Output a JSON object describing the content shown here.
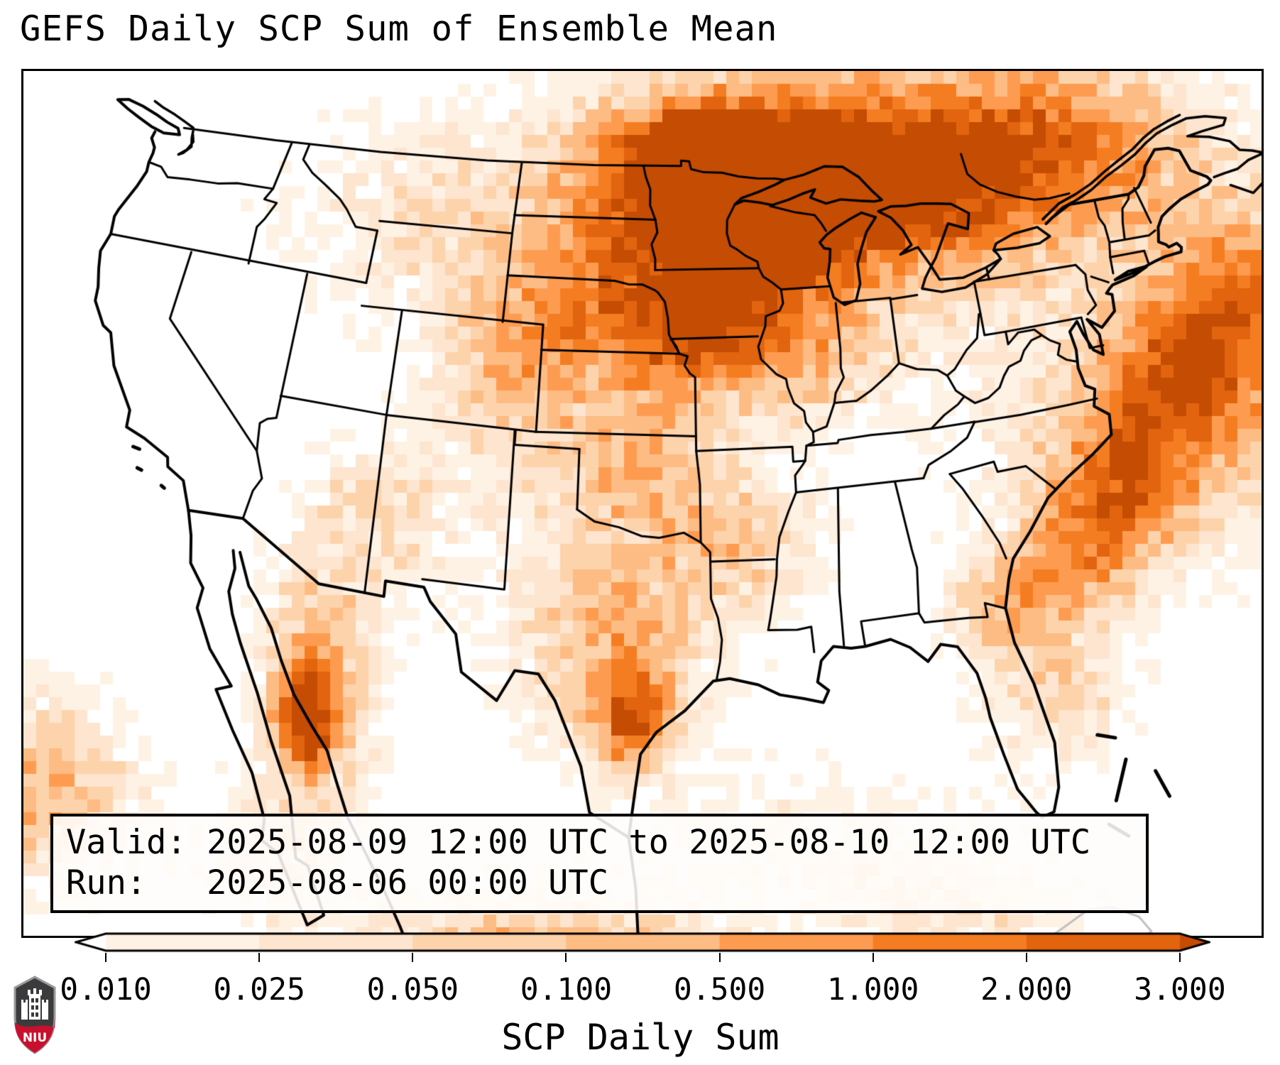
{
  "title": "GEFS Daily SCP Sum of Ensemble Mean",
  "info_box": {
    "valid_line": "Valid: 2025-08-09 12:00 UTC to 2025-08-10 12:00 UTC",
    "run_line": "Run:   2025-08-06 00:00 UTC"
  },
  "colorbar": {
    "label": "SCP Daily Sum",
    "tick_labels": [
      "0.010",
      "0.025",
      "0.050",
      "0.100",
      "0.500",
      "1.000",
      "2.000",
      "3.000"
    ],
    "colors": [
      "#ffffff",
      "#fef2e4",
      "#fde5cf",
      "#fdd3ac",
      "#fdbc84",
      "#fd9c51",
      "#f57d21",
      "#e2640e",
      "#c54c03"
    ],
    "extend": "both"
  },
  "logo": {
    "text": "NIU",
    "shield_dark": "#3b3b3d",
    "shield_red": "#c8102e",
    "outline": "#9a9a9a"
  },
  "map": {
    "land_border_color": "#000000",
    "foreign_water_outline_color": "#c0c0c0",
    "background": "#ffffff"
  },
  "chart_data": {
    "type": "heatmap",
    "title": "GEFS Daily SCP Sum of Ensemble Mean",
    "variable": "SCP Daily Sum",
    "valid": "2025-08-09 12:00 UTC to 2025-08-10 12:00 UTC",
    "run": "2025-08-06 00:00 UTC",
    "region": "CONUS with southern Canada, northern Mexico, Gulf of Mexico and western Atlantic (Lambert conformal view)",
    "colorbar_boundaries": [
      0.01,
      0.025,
      0.05,
      0.1,
      0.5,
      1.0,
      2.0,
      3.0
    ],
    "colorbar_extend": "both",
    "legend_position": "bottom",
    "grid": "coarse ensemble grid (~0.5 deg blocky cells)",
    "notable_features": [
      {
        "area": "northern Minnesota / western Ontario",
        "scp_daily_sum": "2 to >3 (domain maximum)"
      },
      {
        "area": "Wisconsin and Upper Michigan / Lake Superior",
        "scp_daily_sum": "1–2"
      },
      {
        "area": "eastern Dakotas, Nebraska, Iowa, Kansas plains",
        "scp_daily_sum": "0.1–0.5"
      },
      {
        "area": "central and coastal south Texas",
        "scp_daily_sum": "0.5–2"
      },
      {
        "area": "western Atlantic off the Carolinas toward New England",
        "scp_daily_sum": "0.1–1"
      },
      {
        "area": "Sonora / northwest Mexico",
        "scp_daily_sum": "0.5–2"
      },
      {
        "area": "southern Quebec / Ontario",
        "scp_daily_sum": "0.1–0.5"
      },
      {
        "area": "Great Basin, Pacific coast states, mid-Atlantic, interior Southeast, New England",
        "scp_daily_sum": "< 0.01"
      }
    ]
  }
}
